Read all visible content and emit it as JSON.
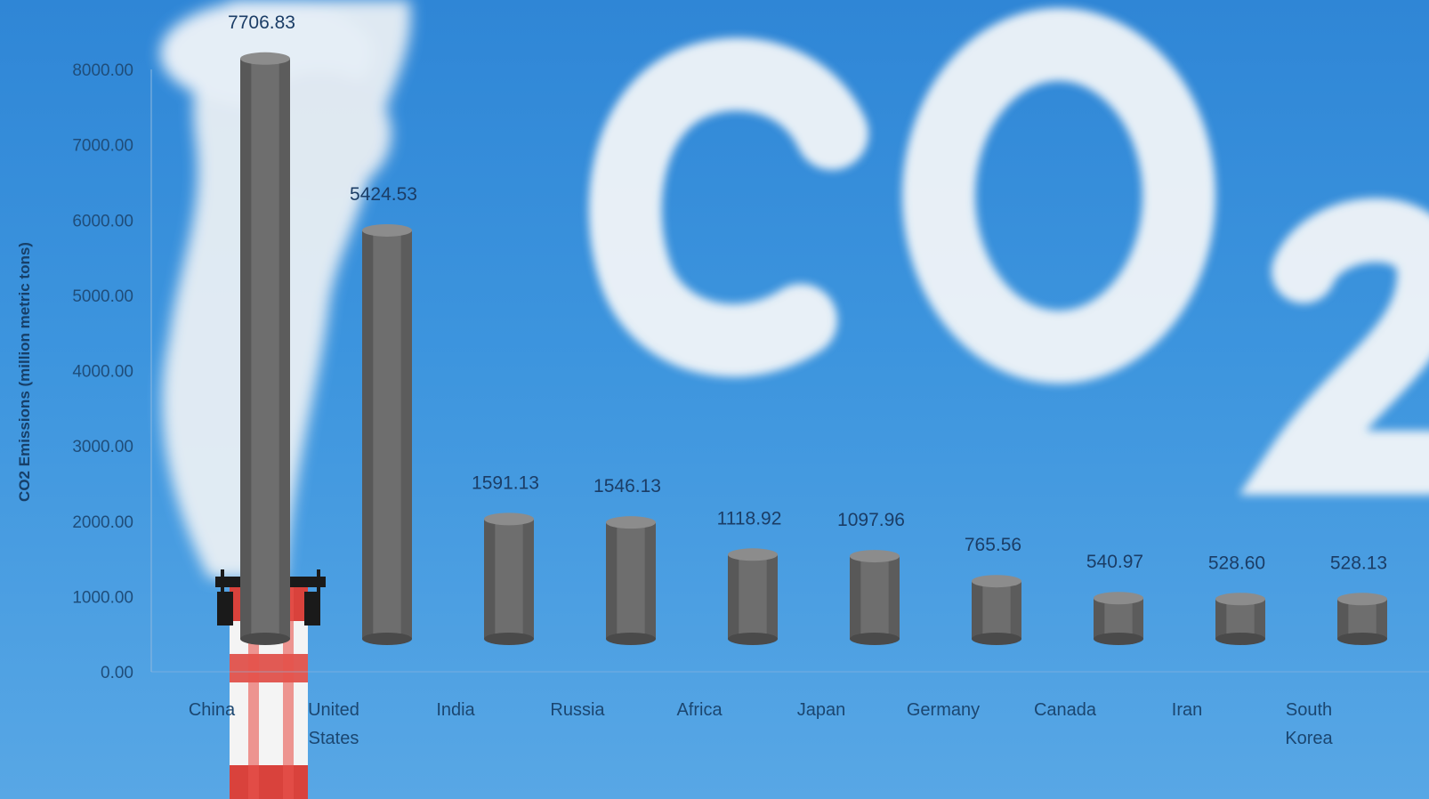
{
  "chart_data": {
    "type": "bar",
    "categories": [
      "China",
      "United States",
      "India",
      "Russia",
      "Africa",
      "Japan",
      "Germany",
      "Canada",
      "Iran",
      "South Korea"
    ],
    "category_lines": [
      [
        "China"
      ],
      [
        "United",
        "States"
      ],
      [
        "India"
      ],
      [
        "Russia"
      ],
      [
        "Africa"
      ],
      [
        "Japan"
      ],
      [
        "Germany"
      ],
      [
        "Canada"
      ],
      [
        "Iran"
      ],
      [
        "South",
        "Korea"
      ]
    ],
    "values": [
      7706.83,
      5424.53,
      1591.13,
      1546.13,
      1118.92,
      1097.96,
      765.56,
      540.97,
      528.6,
      528.13
    ],
    "value_labels": [
      "7706.83",
      "5424.53",
      "1591.13",
      "1546.13",
      "1118.92",
      "1097.96",
      "765.56",
      "540.97",
      "528.60",
      "528.13"
    ],
    "ylabel": "CO2 Emissions (million metric tons)",
    "title": "",
    "xlabel": "",
    "ylim": [
      0,
      8000
    ],
    "yticks": [
      "0.00",
      "1000.00",
      "2000.00",
      "3000.00",
      "4000.00",
      "5000.00",
      "6000.00",
      "7000.00",
      "8000.00"
    ],
    "bar_style": "3d-cylinder",
    "grid": false,
    "legend": "none",
    "colors": {
      "bar": "#6e6e6e",
      "bar_light": "#8c8c8c",
      "bar_dark": "#4a4a4a",
      "sky_top": "#2f86d6",
      "sky_bottom": "#58a7e5",
      "smoke": "#f4f6f8",
      "chimney_red": "#d9423c"
    },
    "background_text": "CO2"
  }
}
